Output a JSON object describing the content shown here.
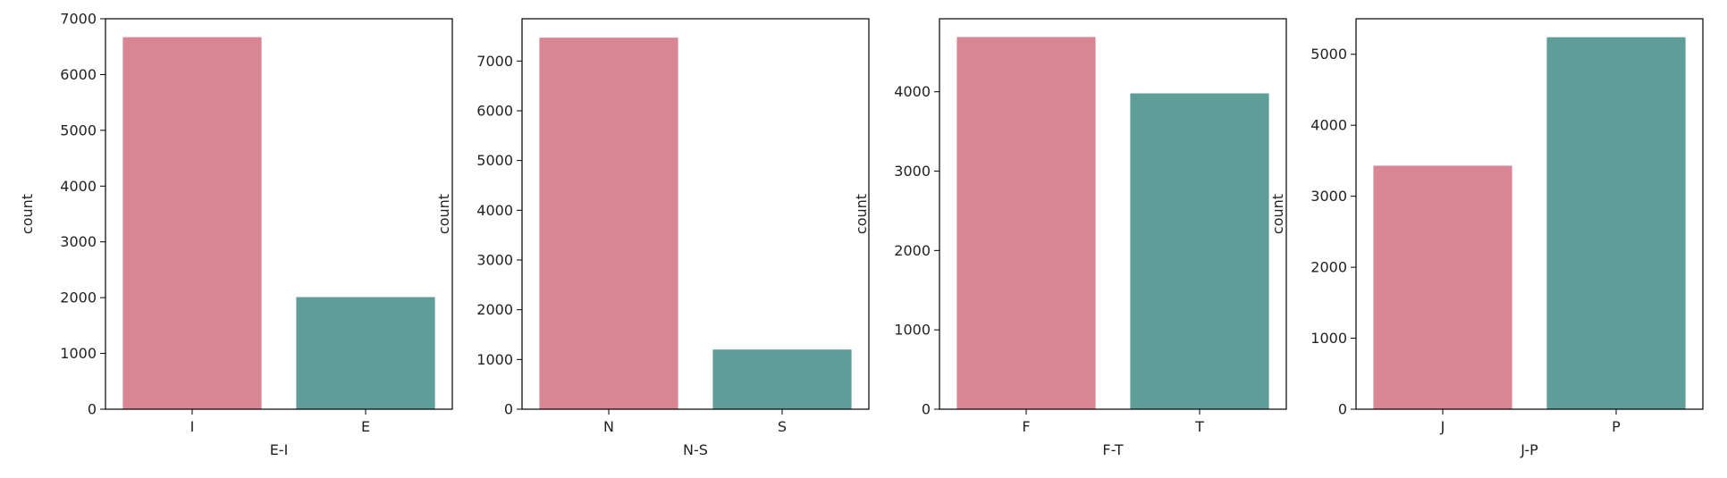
{
  "colors": {
    "first_bar": "#d98593",
    "second_bar": "#5f9e98"
  },
  "chart_data": [
    {
      "type": "bar",
      "categories": [
        "I",
        "E"
      ],
      "values": [
        6670,
        2010
      ],
      "xlabel": "E-I",
      "ylabel": "count",
      "ylim": [
        0,
        7000
      ],
      "yticks": [
        0,
        1000,
        2000,
        3000,
        4000,
        5000,
        6000,
        7000
      ],
      "grid": false
    },
    {
      "type": "bar",
      "categories": [
        "N",
        "S"
      ],
      "values": [
        7470,
        1200
      ],
      "xlabel": "N-S",
      "ylabel": "count",
      "ylim": [
        0,
        7850
      ],
      "yticks": [
        0,
        1000,
        2000,
        3000,
        4000,
        5000,
        6000,
        7000
      ],
      "grid": false
    },
    {
      "type": "bar",
      "categories": [
        "F",
        "T"
      ],
      "values": [
        4690,
        3980
      ],
      "xlabel": "F-T",
      "ylabel": "count",
      "ylim": [
        0,
        4920
      ],
      "yticks": [
        0,
        1000,
        2000,
        3000,
        4000
      ],
      "grid": false
    },
    {
      "type": "bar",
      "categories": [
        "J",
        "P"
      ],
      "values": [
        3430,
        5240
      ],
      "xlabel": "J-P",
      "ylabel": "count",
      "ylim": [
        0,
        5500
      ],
      "yticks": [
        0,
        1000,
        2000,
        3000,
        4000,
        5000
      ],
      "grid": false
    }
  ]
}
